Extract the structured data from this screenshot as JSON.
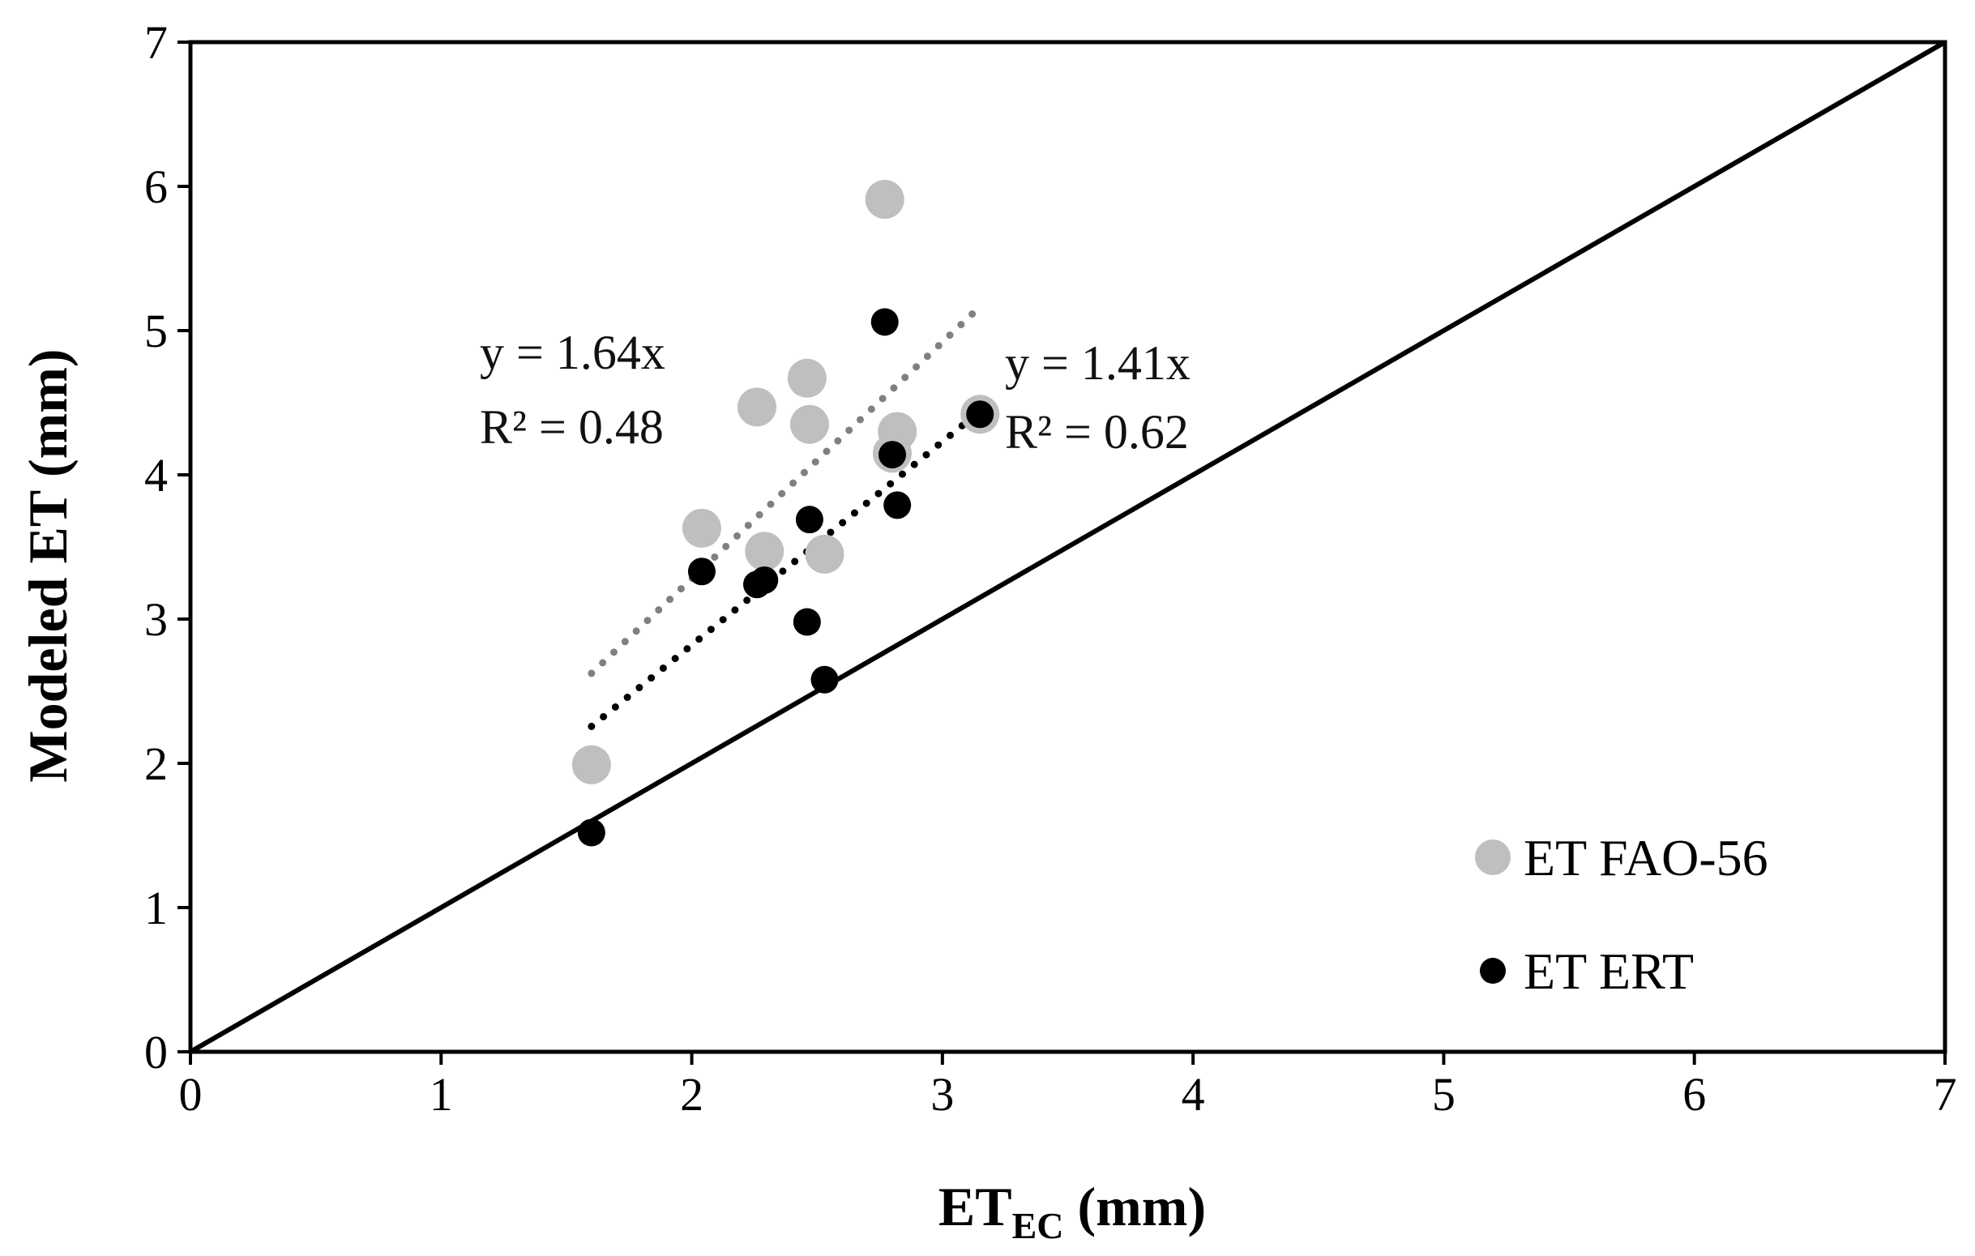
{
  "chart_data": {
    "type": "scatter",
    "title": "",
    "xlabel_main": "ET",
    "xlabel_sub": "EC",
    "xlabel_unit": " (mm)",
    "ylabel": "Modeled ET (mm)",
    "xlim": [
      0,
      7
    ],
    "ylim": [
      0,
      7
    ],
    "x_ticks": [
      "0",
      "1",
      "2",
      "3",
      "4",
      "5",
      "6",
      "7"
    ],
    "y_ticks": [
      "0",
      "1",
      "2",
      "3",
      "4",
      "5",
      "6",
      "7"
    ],
    "grid": false,
    "legend_position": "bottom-right",
    "reference_line": {
      "name": "1:1 line",
      "x": [
        0,
        7
      ],
      "y": [
        0,
        7
      ]
    },
    "series": [
      {
        "name": "ET FAO-56",
        "color": "#bfbfbf",
        "trend_color": "#808080",
        "trend_slope": 1.64,
        "trend_x": [
          1.6,
          3.15
        ],
        "equation": "y = 1.64x",
        "r2": "R² = 0.48",
        "points": [
          {
            "x": 1.6,
            "y": 1.99
          },
          {
            "x": 2.04,
            "y": 3.63
          },
          {
            "x": 2.26,
            "y": 4.47
          },
          {
            "x": 2.29,
            "y": 3.47
          },
          {
            "x": 2.46,
            "y": 4.67
          },
          {
            "x": 2.47,
            "y": 4.35
          },
          {
            "x": 2.53,
            "y": 3.45
          },
          {
            "x": 2.77,
            "y": 5.91
          },
          {
            "x": 2.82,
            "y": 4.3
          },
          {
            "x": 2.8,
            "y": 4.15
          },
          {
            "x": 3.15,
            "y": 4.42
          }
        ]
      },
      {
        "name": "ET ERT",
        "color": "#000000",
        "trend_color": "#000000",
        "trend_slope": 1.41,
        "trend_x": [
          1.6,
          3.15
        ],
        "equation": "y = 1.41x",
        "r2": "R² = 0.62",
        "points": [
          {
            "x": 1.6,
            "y": 1.52
          },
          {
            "x": 2.04,
            "y": 3.33
          },
          {
            "x": 2.26,
            "y": 3.24
          },
          {
            "x": 2.29,
            "y": 3.27
          },
          {
            "x": 2.46,
            "y": 2.98
          },
          {
            "x": 2.47,
            "y": 3.69
          },
          {
            "x": 2.53,
            "y": 2.58
          },
          {
            "x": 2.77,
            "y": 5.06
          },
          {
            "x": 2.8,
            "y": 4.14
          },
          {
            "x": 2.82,
            "y": 3.79
          },
          {
            "x": 3.15,
            "y": 4.42
          }
        ]
      }
    ]
  }
}
